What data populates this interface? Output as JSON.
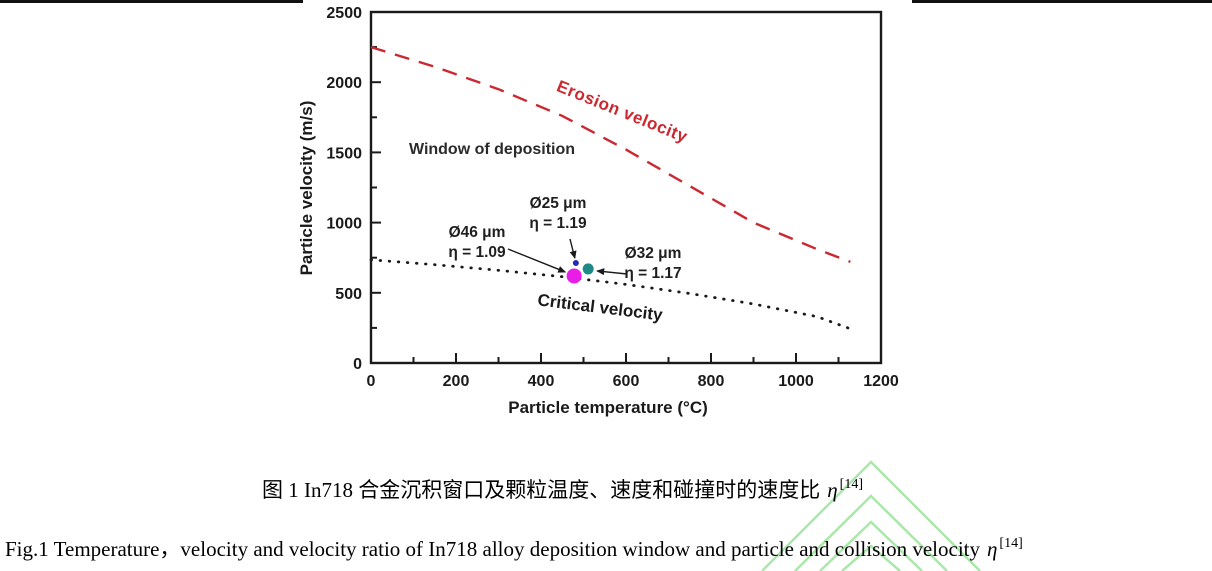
{
  "chart_data": {
    "type": "line",
    "title": "",
    "xlabel": "Particle temperature (°C)",
    "ylabel": "Particle velocity (m/s)",
    "xlim": [
      0,
      1200
    ],
    "ylim": [
      0,
      2500
    ],
    "x_ticks": [
      0,
      200,
      400,
      600,
      800,
      1000,
      1200
    ],
    "y_ticks": [
      0,
      500,
      1000,
      1500,
      2000,
      2500
    ],
    "x_minor_step": 100,
    "y_minor_step": 250,
    "grid": false,
    "legend": "inline-labels",
    "series": [
      {
        "name": "Erosion velocity",
        "style": "dashed",
        "color": "#cb2830",
        "x": [
          0,
          150,
          300,
          450,
          600,
          750,
          900,
          1050,
          1128
        ],
        "y": [
          2250,
          2110,
          1950,
          1760,
          1520,
          1260,
          1000,
          810,
          720
        ]
      },
      {
        "name": "Critical velocity",
        "style": "dotted",
        "color": "#1a1a1a",
        "x": [
          0,
          150,
          300,
          450,
          600,
          750,
          900,
          1050,
          1140
        ],
        "y": [
          735,
          700,
          660,
          615,
          560,
          495,
          420,
          330,
          230
        ]
      }
    ],
    "points": [
      {
        "key": "point-46um",
        "label": "Ø46 μm",
        "ratio": "η = 1.09",
        "temp": 478,
        "velocity": 620,
        "color": "#e81ee8",
        "r": 7.5
      },
      {
        "key": "point-25um",
        "label": "Ø25 μm",
        "ratio": "η = 1.19",
        "temp": 482,
        "velocity": 712,
        "color": "#2828b4",
        "r": 3
      },
      {
        "key": "point-32um",
        "label": "Ø32 μm",
        "ratio": "η = 1.17",
        "temp": 511,
        "velocity": 670,
        "color": "#1d8a86",
        "r": 5.5
      }
    ]
  },
  "chart_annotations": {
    "window_label": "Window of deposition",
    "erosion_label": "Erosion velocity",
    "critical_label": "Critical velocity"
  },
  "captions": {
    "zh": {
      "text": "图 1 In718 合金沉积窗口及颗粒温度、速度和碰撞时的速度比",
      "eta": "η",
      "ref": "[14]"
    },
    "en": {
      "text": "Fig.1 Temperature，velocity and velocity ratio of In718 alloy deposition window and particle and collision velocity",
      "eta": "η",
      "ref": "[14]"
    }
  },
  "colors": {
    "erosion_line": "#cb2830",
    "critical_line": "#1a1a1a",
    "axis": "#1a1a1a",
    "watermark_green": "#a6e7a6",
    "point_magenta": "#e81ee8",
    "point_blue": "#2828b4",
    "point_teal": "#1d8a86"
  }
}
